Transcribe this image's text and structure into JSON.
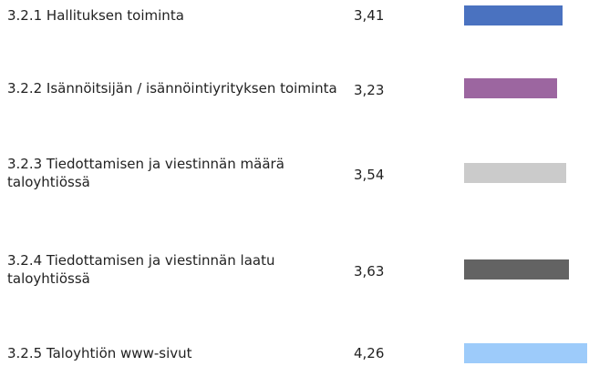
{
  "chart_data": {
    "type": "bar",
    "orientation": "horizontal",
    "categories": [
      "3.2.1 Hallituksen toiminta",
      "3.2.2 Isännöitsijän / isännöintiyrityksen toiminta",
      "3.2.3 Tiedottamisen ja viestinnän määrä taloyhtiössä",
      "3.2.4 Tiedottamisen ja viestinnän laatu taloyhtiössä",
      "3.2.5 Taloyhtiön www-sivut"
    ],
    "values": [
      3.41,
      3.23,
      3.54,
      3.63,
      4.26
    ],
    "value_labels": [
      "3,41",
      "3,23",
      "3,54",
      "3,63",
      "4,26"
    ],
    "colors": [
      "#4a72c0",
      "#9c66a0",
      "#cbcbcb",
      "#636363",
      "#9dcbfa"
    ]
  }
}
